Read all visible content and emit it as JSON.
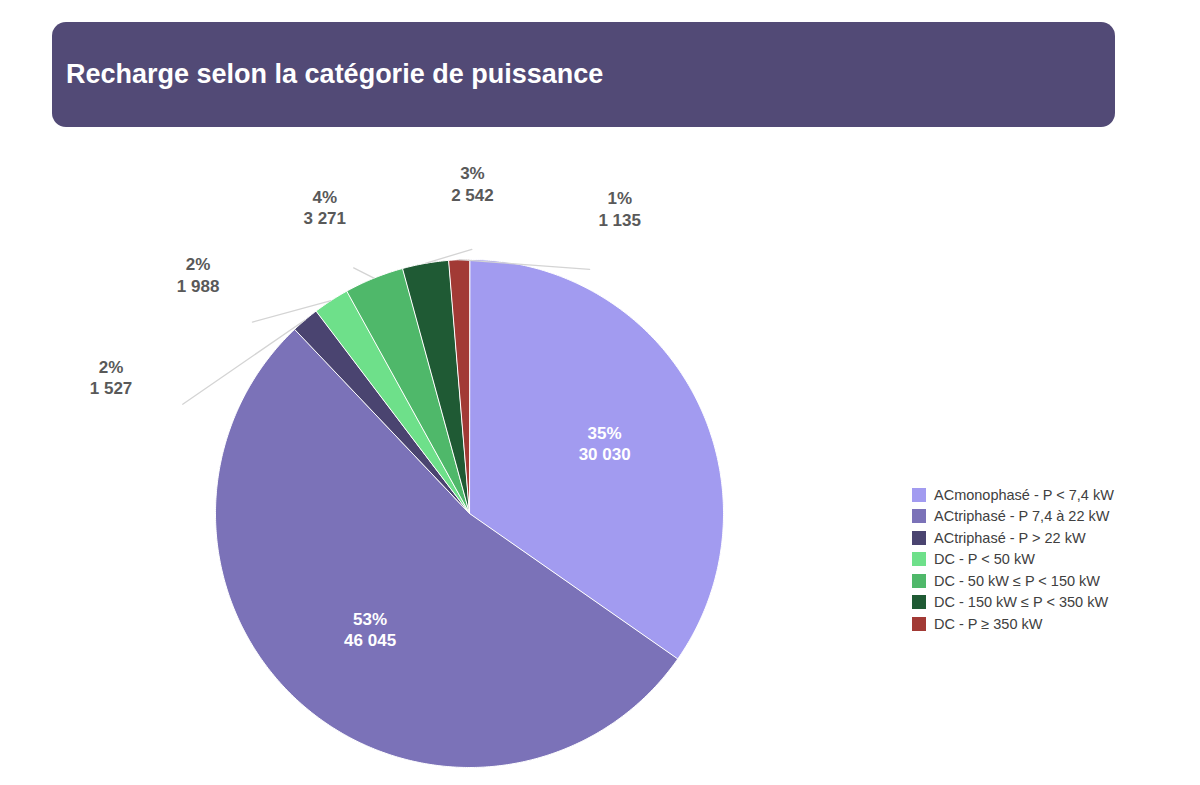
{
  "chart_data": {
    "type": "pie",
    "title": "Recharge selon la catégorie de puissance",
    "categories": [
      "ACmonophasé - P < 7,4 kW",
      "ACtriphasé - P 7,4 à 22 kW",
      "ACtriphasé - P > 22 kW",
      "DC - P < 50 kW",
      "DC - 50 kW ≤ P < 150 kW",
      "DC - 150 kW  ≤ P < 350 kW",
      "DC - P ≥ 350 kW"
    ],
    "values": [
      30030,
      46045,
      1527,
      1988,
      3271,
      2542,
      1135
    ],
    "value_labels": [
      "30 030",
      "46 045",
      "1 527",
      "1 988",
      "3 271",
      "2 542",
      "1 135"
    ],
    "percentages": [
      35,
      53,
      2,
      2,
      4,
      3,
      1
    ],
    "percentage_labels": [
      "35%",
      "53%",
      "2%",
      "2%",
      "4%",
      "3%",
      "1%"
    ],
    "colors": [
      "#a29bf0",
      "#7b72b8",
      "#4a4470",
      "#6ee08a",
      "#4fb86a",
      "#1f5a34",
      "#a23a35"
    ],
    "data_labels": true,
    "legend": "right"
  }
}
